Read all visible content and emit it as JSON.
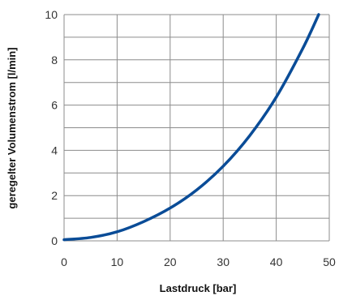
{
  "chart_data": {
    "type": "line",
    "title": "",
    "xlabel": "Lastdruck [bar]",
    "ylabel": "geregelter Volumenstrom [l/min]",
    "xlim": [
      0,
      50
    ],
    "ylim": [
      0,
      10
    ],
    "x_ticks": [
      "0",
      "10",
      "20",
      "30",
      "40",
      "50"
    ],
    "y_ticks": [
      "0",
      "2",
      "4",
      "6",
      "8",
      "10"
    ],
    "grid": true,
    "legend": "none",
    "series": [
      {
        "color": "#0a4c97",
        "x": [
          0,
          5,
          10,
          15,
          20,
          25,
          30,
          35,
          40,
          45,
          48
        ],
        "y": [
          0.05,
          0.15,
          0.4,
          0.85,
          1.45,
          2.25,
          3.3,
          4.65,
          6.35,
          8.5,
          10
        ]
      }
    ],
    "colors": {
      "grid": "#8c8c8c",
      "axis_text": "#333333"
    }
  }
}
